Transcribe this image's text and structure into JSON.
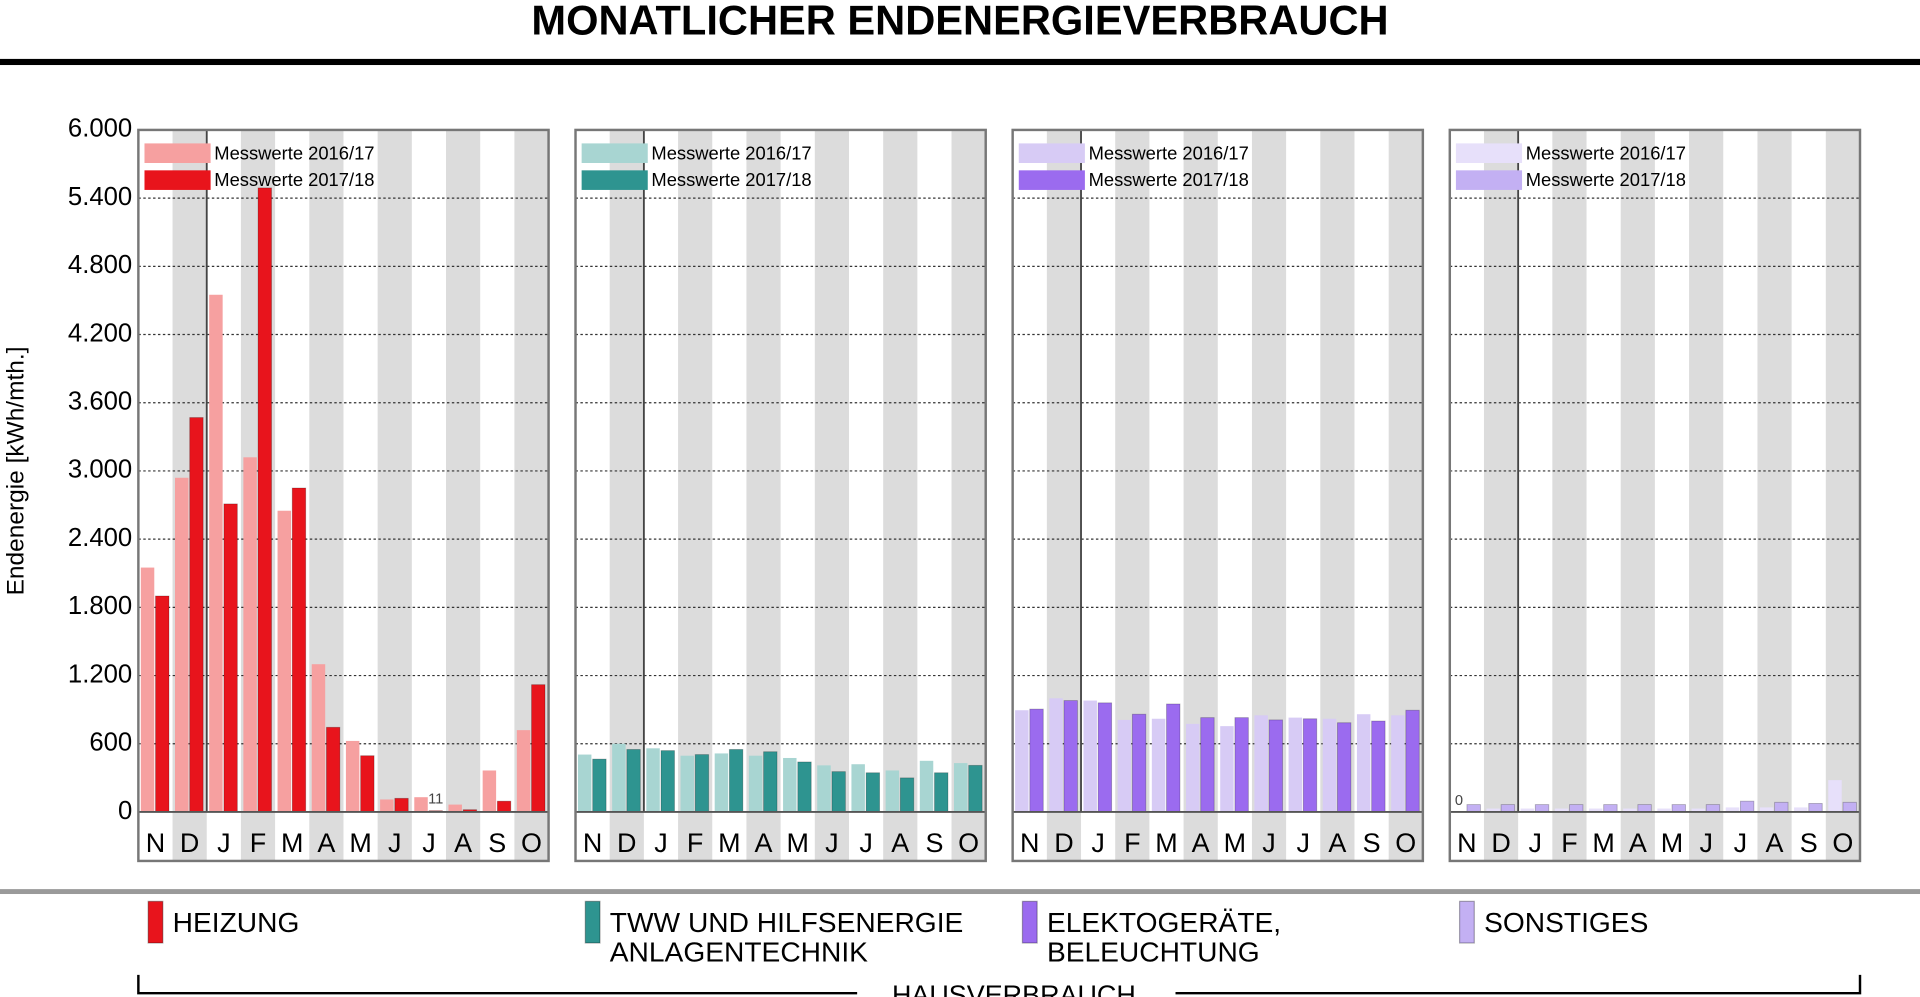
{
  "title": "MONATLICHER ENDENERGIEVERBRAUCH",
  "footer": "HAUSVERBRAUCH",
  "chart_data": [
    {
      "type": "bar",
      "y_label": "Endenergie [kWh/mth.]",
      "label": [
        "HEIZUNG"
      ],
      "categories": [
        "N",
        "D",
        "J",
        "F",
        "M",
        "A",
        "M",
        "J",
        "J",
        "A",
        "S",
        "O"
      ],
      "ylim": [
        0,
        6000
      ],
      "yticks": [
        0,
        600,
        {
          "value": 1200,
          "label": "1.200"
        },
        {
          "value": 1800,
          "label": "1.800"
        },
        {
          "value": 2400,
          "label": "2.400"
        },
        {
          "value": 3000,
          "label": "3.000"
        },
        {
          "value": 3600,
          "label": "3.600"
        },
        {
          "value": 4200,
          "label": "4.200"
        },
        {
          "value": 4800,
          "label": "4.800"
        },
        {
          "value": 5400,
          "label": "5.400"
        },
        {
          "value": 6000,
          "label": "6.000"
        }
      ],
      "grid": true,
      "series": [
        {
          "name": "Messwerte 2016/17",
          "color": "#f6a0a0",
          "values": [
            2150,
            2940,
            4550,
            3120,
            2650,
            1300,
            625,
            110,
            130,
            65,
            365,
            720
          ]
        },
        {
          "name": "Messwerte 2017/18",
          "color": "#e8141c",
          "values": [
            1900,
            3470,
            2710,
            5490,
            2850,
            745,
            495,
            120,
            11,
            20,
            95,
            1120
          ],
          "value_labels": [
            null,
            null,
            null,
            null,
            null,
            null,
            null,
            null,
            "11",
            null,
            null,
            null
          ]
        }
      ]
    },
    {
      "type": "bar",
      "label": [
        "TWW UND HILFSENERGIE",
        "ANLAGENTECHNIK"
      ],
      "categories": [
        "N",
        "D",
        "J",
        "F",
        "M",
        "A",
        "M",
        "J",
        "J",
        "A",
        "S",
        "O"
      ],
      "series": [
        {
          "name": "Messwerte 2016/17",
          "color": "#a8d5d2",
          "values": [
            505,
            600,
            560,
            495,
            515,
            495,
            475,
            410,
            420,
            365,
            450,
            430
          ]
        },
        {
          "name": "Messwerte 2017/18",
          "color": "#2e9490",
          "values": [
            465,
            550,
            540,
            505,
            550,
            530,
            440,
            355,
            345,
            300,
            345,
            410
          ]
        }
      ]
    },
    {
      "type": "bar",
      "label": [
        "ELEKTOGERÄTE,",
        "BELEUCHTUNG"
      ],
      "categories": [
        "N",
        "D",
        "J",
        "F",
        "M",
        "A",
        "M",
        "J",
        "J",
        "A",
        "S",
        "O"
      ],
      "series": [
        {
          "name": "Messwerte 2016/17",
          "color": "#d7cbf5",
          "values": [
            895,
            1000,
            980,
            810,
            820,
            775,
            755,
            850,
            830,
            820,
            860,
            850
          ]
        },
        {
          "name": "Messwerte 2017/18",
          "color": "#9b6bef",
          "values": [
            905,
            980,
            960,
            860,
            950,
            830,
            830,
            810,
            820,
            785,
            800,
            895
          ]
        }
      ]
    },
    {
      "type": "bar",
      "label": [
        "SONSTIGES"
      ],
      "categories": [
        "N",
        "D",
        "J",
        "F",
        "M",
        "A",
        "M",
        "J",
        "J",
        "A",
        "S",
        "O"
      ],
      "series": [
        {
          "name": "Messwerte 2016/17",
          "color": "#e7e0fa",
          "values": [
            0,
            30,
            30,
            30,
            30,
            30,
            30,
            30,
            40,
            40,
            40,
            280
          ],
          "value_labels": [
            "0",
            null,
            null,
            null,
            null,
            null,
            null,
            null,
            null,
            null,
            null,
            null
          ]
        },
        {
          "name": "Messwerte 2017/18",
          "color": "#c3b0f3",
          "values": [
            65,
            65,
            65,
            65,
            65,
            65,
            65,
            65,
            95,
            85,
            75,
            85
          ]
        }
      ]
    }
  ]
}
